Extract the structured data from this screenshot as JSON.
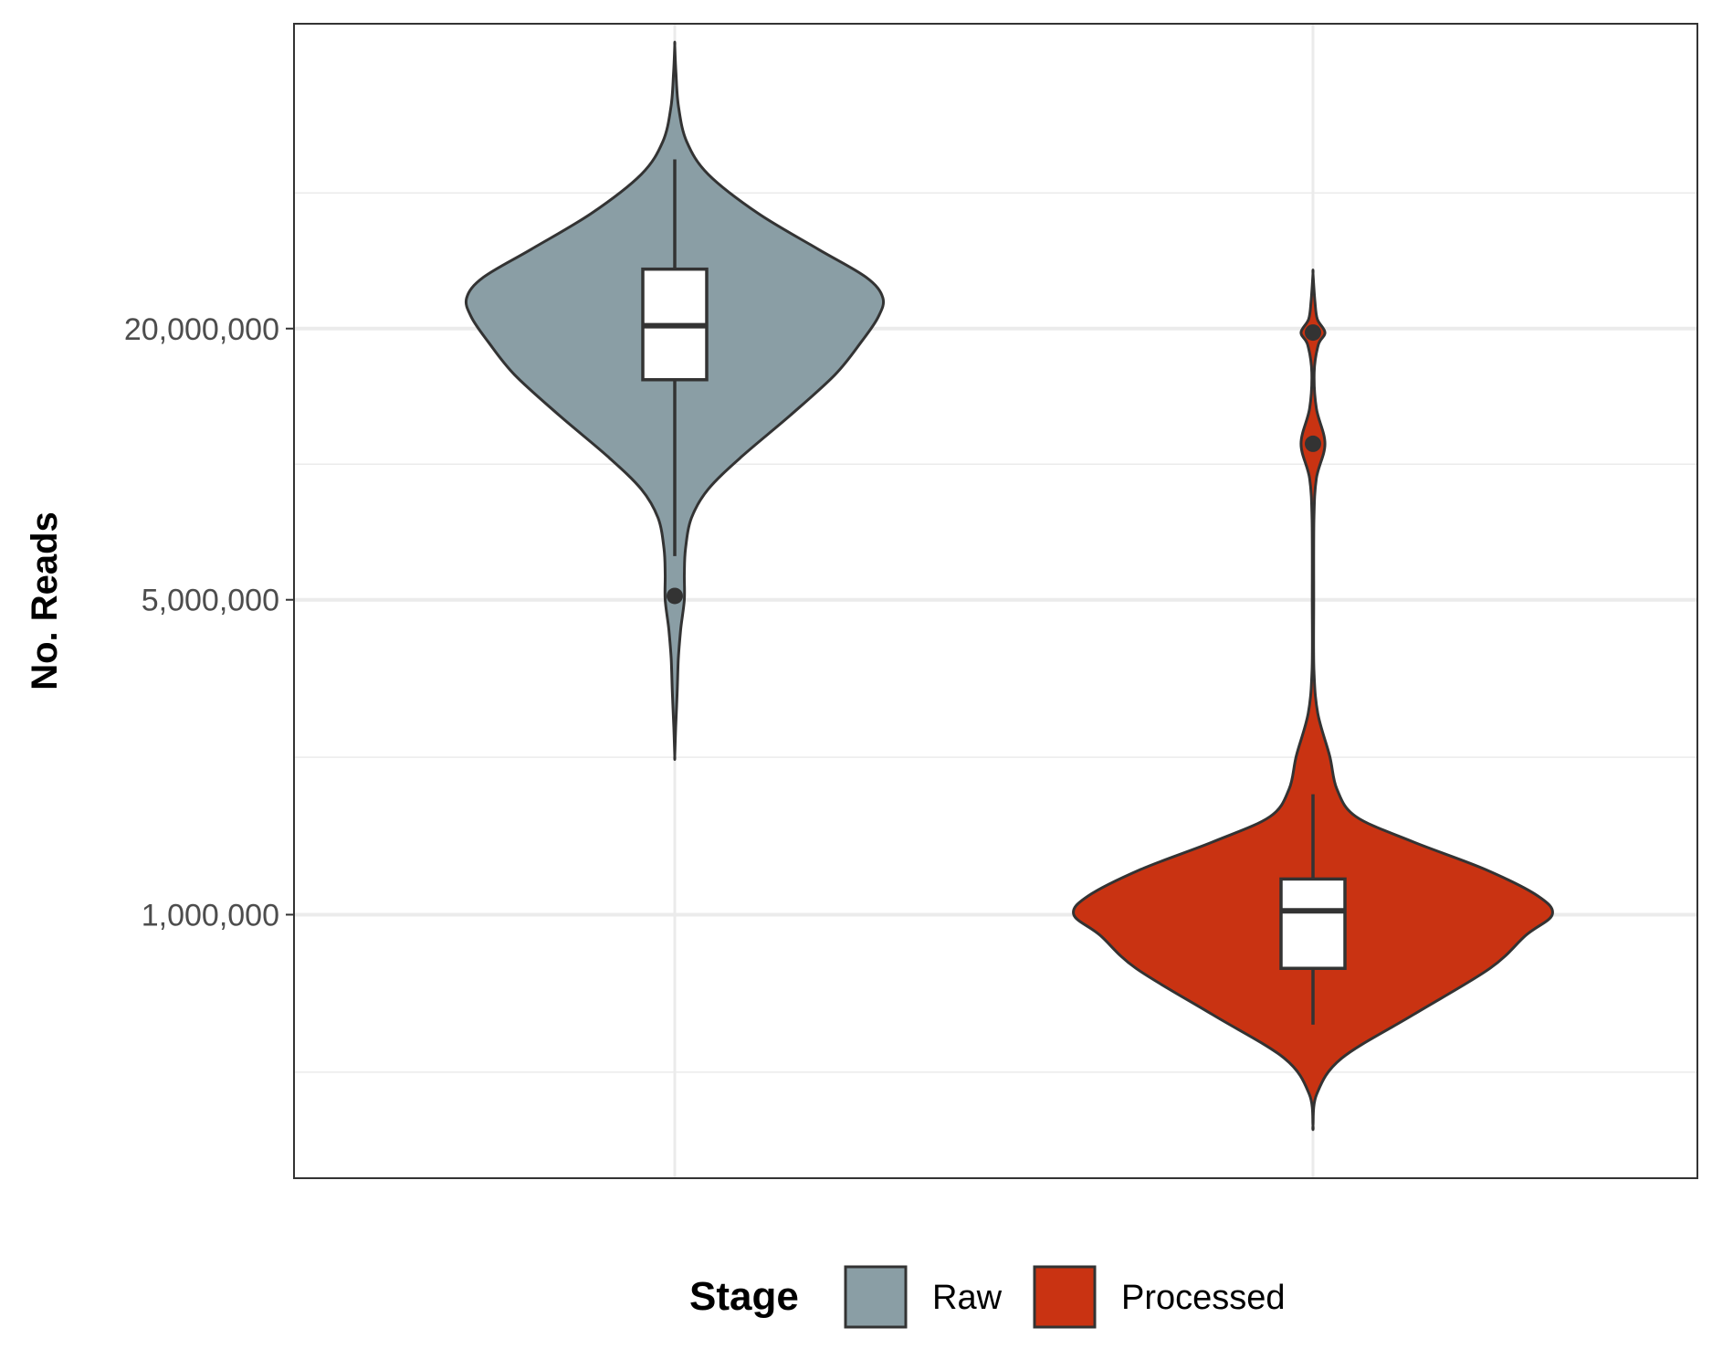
{
  "chart_data": {
    "type": "violin",
    "y_scale": "log10",
    "ylabel": "No. Reads",
    "ylim": [
      260000,
      95000000
    ],
    "y_ticks": [
      {
        "value": 1000000,
        "label": "1,000,000"
      },
      {
        "value": 5000000,
        "label": "5,000,000"
      },
      {
        "value": 20000000,
        "label": "20,000,000"
      }
    ],
    "grid": true,
    "legend": {
      "title": "Stage",
      "placement": "bottom"
    },
    "series": [
      {
        "name": "Raw",
        "color": "#8a9ea5",
        "box": {
          "whisker_low": 6250000,
          "q1": 15400000,
          "median": 20300000,
          "q3": 27100000,
          "whisker_high": 47500000
        },
        "outliers": [
          5100000
        ],
        "density_profile": [
          [
            2250000,
            0.0
          ],
          [
            2600000,
            0.004
          ],
          [
            3100000,
            0.01
          ],
          [
            3700000,
            0.015
          ],
          [
            4300000,
            0.025
          ],
          [
            5000000,
            0.04
          ],
          [
            5700000,
            0.04
          ],
          [
            6500000,
            0.045
          ],
          [
            7600000,
            0.07
          ],
          [
            8800000,
            0.14
          ],
          [
            10400000,
            0.28
          ],
          [
            12800000,
            0.48
          ],
          [
            15800000,
            0.67
          ],
          [
            18700000,
            0.78
          ],
          [
            21200000,
            0.85
          ],
          [
            23400000,
            0.87
          ],
          [
            26000000,
            0.8
          ],
          [
            30000000,
            0.6
          ],
          [
            36000000,
            0.35
          ],
          [
            44000000,
            0.14
          ],
          [
            52000000,
            0.05
          ],
          [
            62000000,
            0.016
          ],
          [
            74000000,
            0.005
          ],
          [
            85000000,
            0.0
          ]
        ]
      },
      {
        "name": "Processed",
        "color": "#c93312",
        "box": {
          "whisker_low": 570000,
          "q1": 760000,
          "median": 1020000,
          "q3": 1200000,
          "whisker_high": 1850000
        },
        "outliers": [
          19600000,
          11100000
        ],
        "density_profile": [
          [
            340000,
            0.0
          ],
          [
            400000,
            0.016
          ],
          [
            480000,
            0.12
          ],
          [
            600000,
            0.42
          ],
          [
            760000,
            0.74
          ],
          [
            900000,
            0.89
          ],
          [
            1000000,
            1.0
          ],
          [
            1100000,
            0.94
          ],
          [
            1260000,
            0.72
          ],
          [
            1450000,
            0.42
          ],
          [
            1650000,
            0.18
          ],
          [
            1900000,
            0.1
          ],
          [
            2250000,
            0.07
          ],
          [
            2800000,
            0.02
          ],
          [
            3500000,
            0.004
          ],
          [
            5000000,
            0.003
          ],
          [
            7500000,
            0.004
          ],
          [
            9300000,
            0.014
          ],
          [
            11100000,
            0.05
          ],
          [
            13300000,
            0.014
          ],
          [
            16000000,
            0.005
          ],
          [
            18400000,
            0.022
          ],
          [
            19600000,
            0.05
          ],
          [
            21000000,
            0.018
          ],
          [
            23000000,
            0.008
          ],
          [
            26500000,
            0.0
          ]
        ]
      }
    ]
  }
}
